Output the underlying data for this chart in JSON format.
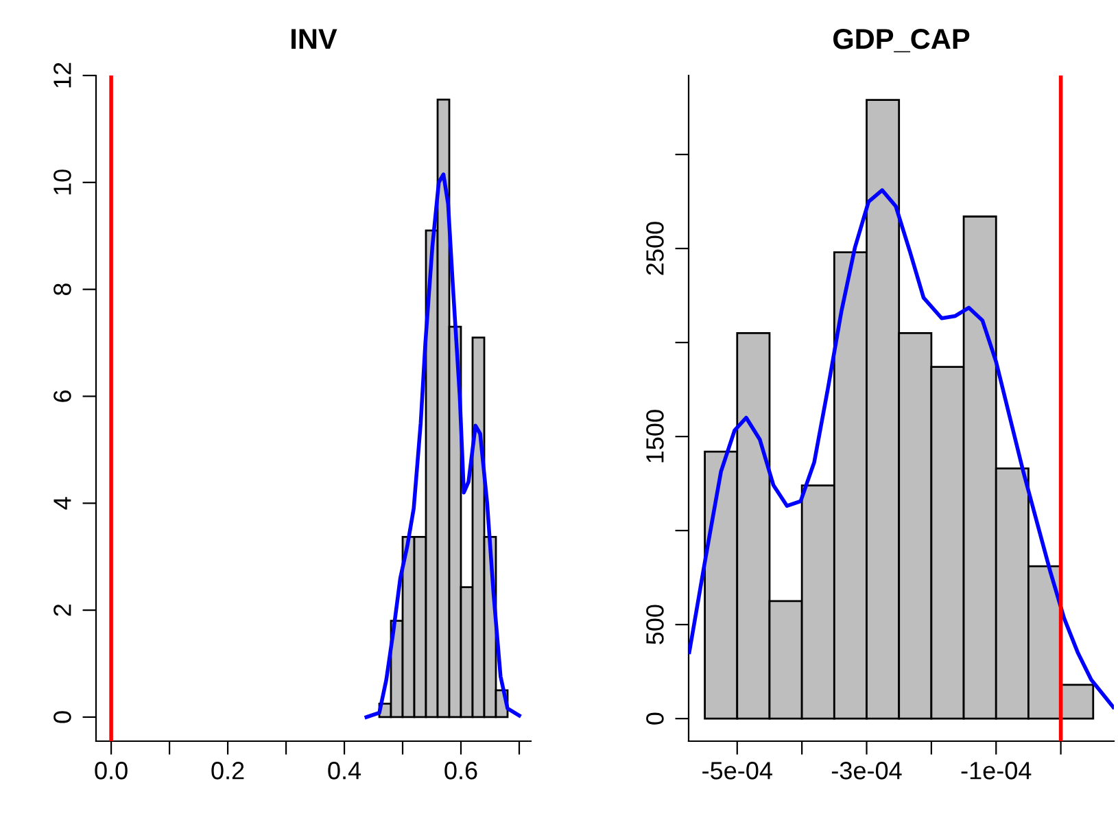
{
  "chart_data": [
    {
      "type": "histogram",
      "title": "INV",
      "bins": [
        0.46,
        0.48,
        0.5,
        0.52,
        0.54,
        0.56,
        0.58,
        0.6,
        0.62,
        0.64,
        0.66,
        0.68
      ],
      "values": [
        0.25,
        1.8,
        3.37,
        3.37,
        9.1,
        11.55,
        7.3,
        2.43,
        7.1,
        3.37,
        0.5
      ],
      "color": "#bebebe",
      "series": [
        {
          "type": "line",
          "color": "#0000ff",
          "x": [
            0.438,
            0.46,
            0.472,
            0.484,
            0.496,
            0.508,
            0.519,
            0.531,
            0.539,
            0.551,
            0.562,
            0.57,
            0.578,
            0.586,
            0.598,
            0.605,
            0.613,
            0.625,
            0.633,
            0.645,
            0.656,
            0.668,
            0.68,
            0.7
          ],
          "values": [
            0,
            0.08,
            0.7,
            1.6,
            2.6,
            3.2,
            3.9,
            5.5,
            7.0,
            8.8,
            10.0,
            10.15,
            9.6,
            8.1,
            6.0,
            4.2,
            4.4,
            5.45,
            5.3,
            4.0,
            2.3,
            0.76,
            0.16,
            0.03
          ]
        }
      ],
      "ref_lines": [
        {
          "axis": "x",
          "value": 0,
          "color": "#ff0000"
        }
      ],
      "xlim": [
        -0.026,
        0.72
      ],
      "ylim": [
        -0.45,
        12
      ],
      "xticks": [
        {
          "value": 0,
          "label": "0.0"
        },
        {
          "value": 0.1,
          "label": null
        },
        {
          "value": 0.2,
          "label": "0.2"
        },
        {
          "value": 0.3,
          "label": null
        },
        {
          "value": 0.4,
          "label": "0.4"
        },
        {
          "value": 0.5,
          "label": null
        },
        {
          "value": 0.6,
          "label": "0.6"
        },
        {
          "value": 0.7,
          "label": null
        }
      ],
      "yticks": [
        0,
        2,
        4,
        6,
        8,
        10,
        12
      ],
      "grid": false,
      "legend": false
    },
    {
      "type": "histogram",
      "title": "GDP_CAP",
      "bins": [
        -0.00055,
        -0.0005,
        -0.00045,
        -0.0004,
        -0.00035,
        -0.0003,
        -0.00025,
        -0.0002,
        -0.00015,
        -0.0001,
        -5e-05,
        0,
        5e-05
      ],
      "values": [
        1420,
        2050,
        625,
        1240,
        2480,
        3290,
        2050,
        1870,
        2670,
        1330,
        810,
        180
      ],
      "color": "#bebebe",
      "series": [
        {
          "type": "line",
          "color": "#0000ff",
          "x": [
            -0.000574,
            -0.000549,
            -0.000525,
            -0.000504,
            -0.000486,
            -0.000465,
            -0.000444,
            -0.000423,
            -0.000402,
            -0.000381,
            -0.00036,
            -0.000339,
            -0.000318,
            -0.000297,
            -0.000276,
            -0.000255,
            -0.000233,
            -0.000212,
            -0.000184,
            -0.000163,
            -0.000142,
            -0.000121,
            -0.0001,
            -7.9e-05,
            -5.8e-05,
            -3.7e-05,
            -1.6e-05,
            5e-06,
            2.6e-05,
            4.7e-05,
            8.1e-05
          ],
          "values": [
            353,
            852,
            1314,
            1533,
            1600,
            1484,
            1241,
            1131,
            1156,
            1363,
            1752,
            2165,
            2506,
            2749,
            2810,
            2725,
            2482,
            2238,
            2129,
            2141,
            2185,
            2117,
            1898,
            1606,
            1314,
            1046,
            779,
            535,
            353,
            207,
            61
          ]
        }
      ],
      "ref_lines": [
        {
          "axis": "x",
          "value": 0,
          "color": "#ff0000"
        }
      ],
      "xlim": [
        -0.000575,
        8.2e-05
      ],
      "ylim": [
        -120,
        3420
      ],
      "xticks": [
        {
          "value": -0.0005,
          "label": "-5e-04"
        },
        {
          "value": -0.0004,
          "label": null
        },
        {
          "value": -0.0003,
          "label": "-3e-04"
        },
        {
          "value": -0.0002,
          "label": null
        },
        {
          "value": -0.0001,
          "label": "-1e-04"
        },
        {
          "value": 0,
          "label": null
        }
      ],
      "yticks": [
        0,
        500,
        {
          "value": 1000,
          "label": null
        },
        1500,
        {
          "value": 2000,
          "label": null
        },
        2500,
        {
          "value": 3000,
          "label": null
        }
      ],
      "grid": false,
      "legend": false
    }
  ]
}
